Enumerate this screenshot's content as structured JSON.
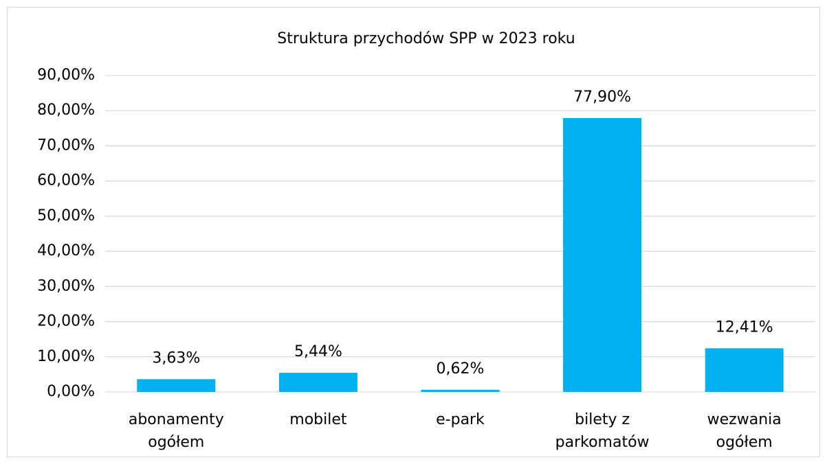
{
  "chart_data": {
    "type": "bar",
    "title": "Struktura przychodów SPP w 2023 roku",
    "categories": [
      "abonamenty ogółem",
      "mobilet",
      "e-park",
      "bilety z parkomatów",
      "wezwania ogółem"
    ],
    "values": [
      3.63,
      5.44,
      0.62,
      77.9,
      12.41
    ],
    "value_labels": [
      "3,63%",
      "5,44%",
      "0,62%",
      "77,90%",
      "12,41%"
    ],
    "color": "#00b0f0",
    "ylim": [
      0,
      90
    ],
    "yticks": [
      {
        "value": 0,
        "label": "0,00%"
      },
      {
        "value": 10,
        "label": "10,00%"
      },
      {
        "value": 20,
        "label": "20,00%"
      },
      {
        "value": 30,
        "label": "30,00%"
      },
      {
        "value": 40,
        "label": "40,00%"
      },
      {
        "value": 50,
        "label": "50,00%"
      },
      {
        "value": 60,
        "label": "60,00%"
      },
      {
        "value": 70,
        "label": "70,00%"
      },
      {
        "value": 80,
        "label": "80,00%"
      },
      {
        "value": 90,
        "label": "90,00%"
      }
    ],
    "grid": true
  }
}
